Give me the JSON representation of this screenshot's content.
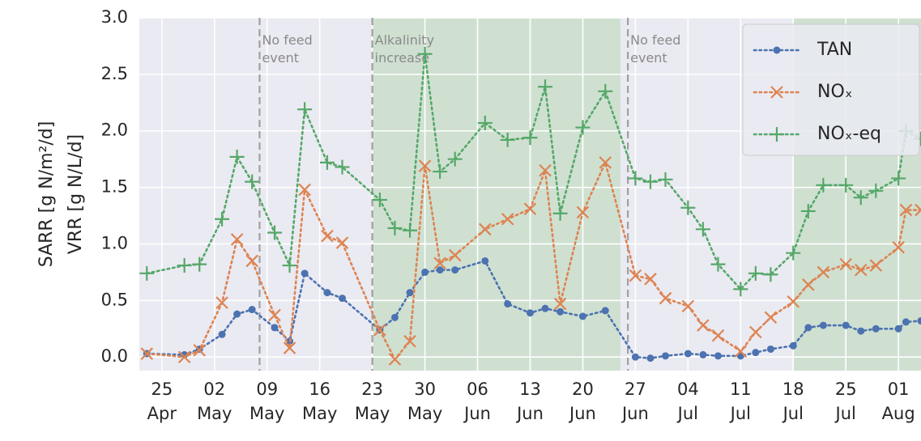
{
  "chart_data": {
    "type": "line",
    "ylabel": [
      "SARR [g N/m²/d]",
      "VRR [g N/L/d]"
    ],
    "x": [
      "04-23",
      "04-28",
      "04-30",
      "05-03",
      "05-05",
      "05-07",
      "05-10",
      "05-12",
      "05-14",
      "05-17",
      "05-19",
      "05-24",
      "05-26",
      "05-28",
      "05-30",
      "06-01",
      "06-03",
      "06-07",
      "06-10",
      "06-13",
      "06-15",
      "06-17",
      "06-20",
      "06-23",
      "06-27",
      "06-29",
      "07-01",
      "07-04",
      "07-06",
      "07-08",
      "07-11",
      "07-13",
      "07-15",
      "07-18",
      "07-20",
      "07-22",
      "07-25",
      "07-27",
      "07-29",
      "08-01",
      "08-02",
      "08-04"
    ],
    "series": [
      {
        "name": "TAN",
        "color": "#4c72b0",
        "marker": "circle",
        "values": [
          0.03,
          0.02,
          0.07,
          0.2,
          0.38,
          0.42,
          0.26,
          0.14,
          0.74,
          0.57,
          0.52,
          0.24,
          0.35,
          0.57,
          0.75,
          0.77,
          0.77,
          0.85,
          0.47,
          0.39,
          0.43,
          0.4,
          0.36,
          0.41,
          0.0,
          -0.01,
          0.01,
          0.03,
          0.02,
          0.01,
          0.01,
          0.04,
          0.07,
          0.1,
          0.26,
          0.28,
          0.28,
          0.23,
          0.25,
          0.25,
          0.31,
          0.32
        ]
      },
      {
        "name": "NOₓ",
        "color": "#dd8452",
        "marker": "x",
        "values": [
          0.03,
          0,
          0.06,
          0.48,
          1.04,
          0.85,
          0.37,
          0.08,
          1.48,
          1.07,
          1.01,
          0.24,
          -0.02,
          0.14,
          1.69,
          0.83,
          0.9,
          1.13,
          1.22,
          1.31,
          1.65,
          0.47,
          1.28,
          1.72,
          0.72,
          0.69,
          0.52,
          0.45,
          0.28,
          0.19,
          0.05,
          0.22,
          0.35,
          0.49,
          0.64,
          0.75,
          0.82,
          0.77,
          0.81,
          0.97,
          1.3,
          1.3
        ]
      },
      {
        "name": "NOₓ-eq",
        "color": "#55a868",
        "marker": "plus",
        "values": [
          0.74,
          0.81,
          0.82,
          1.22,
          1.77,
          1.55,
          1.1,
          0.81,
          2.19,
          1.72,
          1.68,
          1.39,
          1.14,
          1.12,
          2.68,
          1.64,
          1.75,
          2.07,
          1.92,
          1.94,
          2.39,
          1.27,
          2.03,
          2.35,
          1.58,
          1.55,
          1.57,
          1.32,
          1.13,
          0.82,
          0.6,
          0.74,
          0.73,
          0.92,
          1.29,
          1.52,
          1.52,
          1.41,
          1.47,
          1.58,
          2.0,
          1.93
        ]
      }
    ],
    "xlim": [
      "04-22",
      "08-04"
    ],
    "xticks": [
      {
        "value": "04-25",
        "label": "25 Apr"
      },
      {
        "value": "05-02",
        "label": "02 May"
      },
      {
        "value": "05-09",
        "label": "09 May"
      },
      {
        "value": "05-16",
        "label": "16 May"
      },
      {
        "value": "05-23",
        "label": "23 May"
      },
      {
        "value": "05-30",
        "label": "30 May"
      },
      {
        "value": "06-06",
        "label": "06 Jun"
      },
      {
        "value": "06-13",
        "label": "13 Jun"
      },
      {
        "value": "06-20",
        "label": "20 Jun"
      },
      {
        "value": "06-27",
        "label": "27 Jun"
      },
      {
        "value": "07-04",
        "label": "04 Jul"
      },
      {
        "value": "07-11",
        "label": "11 Jul"
      },
      {
        "value": "07-18",
        "label": "18 Jul"
      },
      {
        "value": "07-25",
        "label": "25 Jul"
      },
      {
        "value": "08-01",
        "label": "01 Aug"
      }
    ],
    "ylim": [
      -0.12,
      3.0
    ],
    "yticks": [
      {
        "value": 0,
        "label": "0.0"
      },
      0.5,
      {
        "value": 1,
        "label": "1.0"
      },
      1.5,
      {
        "value": 2,
        "label": "2.0"
      },
      2.5,
      {
        "value": 3,
        "label": "3.0"
      }
    ],
    "grid": true,
    "legend": "upper right",
    "shaded_regions": [
      {
        "start": "05-23",
        "end": "06-25",
        "color": "#cfe0d1"
      },
      {
        "start": "07-18",
        "end": "08-04",
        "color": "#cfe0d1"
      }
    ],
    "annotations": [
      {
        "x": "05-08",
        "label": "No feed event"
      },
      {
        "x": "05-23",
        "label": "Alkalinity increase"
      },
      {
        "x": "06-26",
        "label": "No feed event"
      }
    ]
  }
}
